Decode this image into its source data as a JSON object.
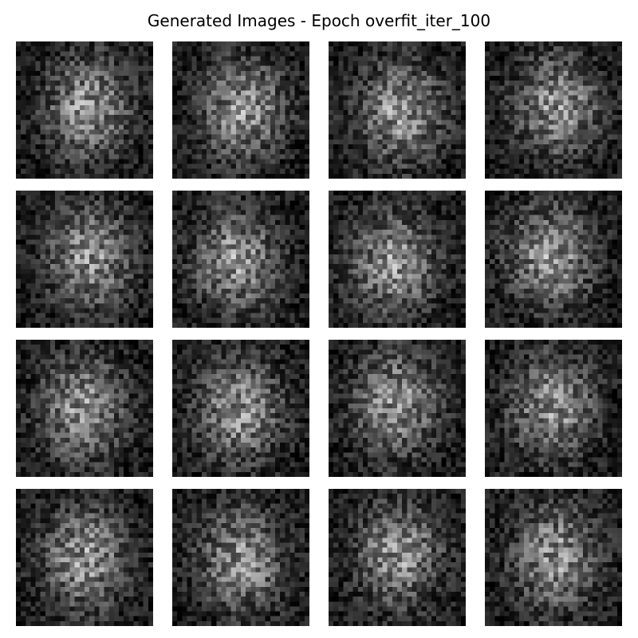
{
  "figure": {
    "title": "Generated Images - Epoch overfit_iter_100"
  },
  "grid": {
    "rows": 4,
    "cols": 4,
    "image_resolution": 28,
    "colormap": "gray"
  }
}
